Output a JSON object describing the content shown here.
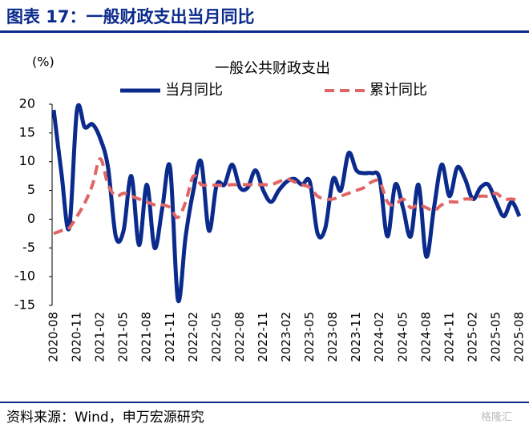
{
  "header": {
    "title": "图表 17：一般财政支出当月同比"
  },
  "chart_data": {
    "type": "line",
    "title": "一般公共财政支出",
    "y_unit_label": "(%)",
    "categories": [
      "2020-08",
      null,
      null,
      "2020-11",
      null,
      null,
      "2021-02",
      null,
      null,
      "2021-05",
      null,
      null,
      "2021-08",
      null,
      null,
      "2021-11",
      null,
      null,
      "2022-02",
      null,
      null,
      "2022-05",
      null,
      null,
      "2022-08",
      null,
      null,
      "2022-11",
      null,
      null,
      "2023-02",
      null,
      null,
      "2023-05",
      null,
      null,
      "2023-08",
      null,
      null,
      "2023-11",
      null,
      null,
      "2024-02",
      null,
      null,
      "2024-05",
      null,
      null,
      "2024-08",
      null,
      null,
      "2024-11",
      null,
      null,
      "2025-02",
      null,
      null,
      "2025-05",
      null,
      null,
      "2025-08"
    ],
    "series": [
      {
        "name": "当月同比",
        "color": "#0a2a8c",
        "style": "solid",
        "values": [
          19,
          8,
          -1.5,
          19,
          16,
          16.5,
          14,
          9,
          -3,
          -2,
          7.5,
          -4.5,
          6,
          -5,
          2,
          9,
          -14,
          -3,
          5,
          10,
          -2,
          6,
          6,
          9.5,
          5.5,
          5.5,
          8.5,
          5,
          3,
          5,
          6.5,
          7,
          6,
          6.5,
          -2.5,
          -1.5,
          7,
          5,
          11.5,
          8.5,
          8,
          8,
          7,
          -3,
          6,
          2,
          -3,
          6,
          -6.5,
          2,
          9.5,
          4,
          9,
          7,
          3.5,
          5.5,
          6,
          3,
          0.5,
          3,
          0.5
        ]
      },
      {
        "name": "累计同比",
        "color": "#e06666",
        "style": "dashed",
        "values": [
          -2.5,
          -2,
          -1.5,
          0.5,
          2.8,
          6,
          10.5,
          6,
          4,
          4.5,
          4,
          3.5,
          3,
          2.5,
          2.5,
          2,
          0.3,
          3,
          7.5,
          6,
          6,
          5.9,
          5.9,
          6,
          6,
          6,
          6,
          6,
          6,
          6.5,
          7,
          6.5,
          6,
          5.5,
          4,
          3.5,
          3.5,
          4,
          4.5,
          5,
          5.5,
          6.5,
          6.5,
          3,
          2.5,
          3.5,
          2,
          2.5,
          2,
          1.5,
          2.5,
          3,
          3,
          3.5,
          3.5,
          4,
          4,
          4.5,
          3.5,
          3.5,
          3.3
        ]
      }
    ],
    "ylim": [
      -15,
      20
    ],
    "yticks": [
      20,
      15,
      10,
      5,
      0,
      -5,
      -10,
      -15
    ]
  },
  "footer": {
    "source": "资料来源：Wind，申万宏源研究",
    "watermark": "格隆汇"
  }
}
